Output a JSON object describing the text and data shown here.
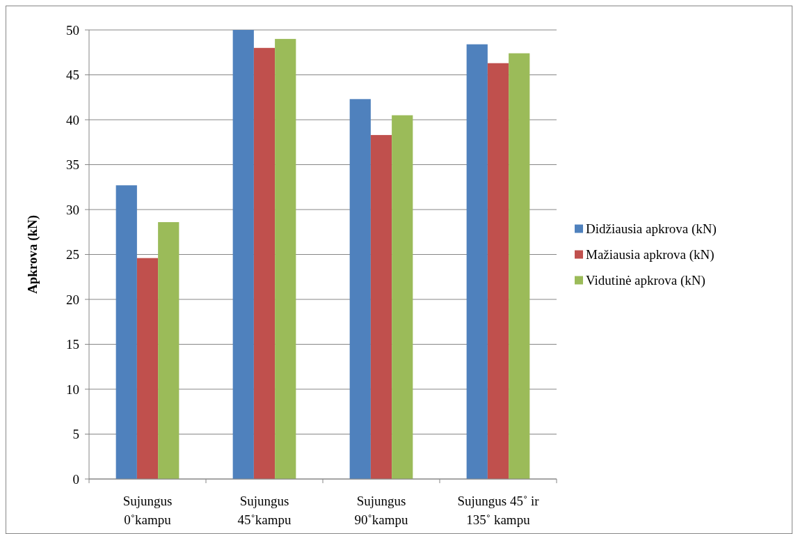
{
  "chart_data": {
    "type": "bar",
    "ylabel": "Apkrova (kN)",
    "categories": [
      "Sujungus 0˚kampu",
      "Sujungus 45˚kampu",
      "Sujungus 90˚kampu",
      "Sujungus 45˚ ir 135˚ kampu"
    ],
    "series": [
      {
        "name": "Didžiausia apkrova (kN)",
        "color": "#4f81bd",
        "values": [
          32.7,
          50,
          42.3,
          48.4
        ]
      },
      {
        "name": "Mažiausia apkrova (kN)",
        "color": "#c0504d",
        "values": [
          24.6,
          48.0,
          38.3,
          46.3
        ]
      },
      {
        "name": "Vidutinė apkrova (kN)",
        "color": "#9bbb59",
        "values": [
          28.6,
          49.0,
          40.5,
          47.4
        ]
      }
    ],
    "ylim": [
      0,
      50
    ],
    "yticks": [
      0,
      5,
      10,
      15,
      20,
      25,
      30,
      35,
      40,
      45,
      50
    ],
    "grid": "y",
    "legend": "right"
  }
}
